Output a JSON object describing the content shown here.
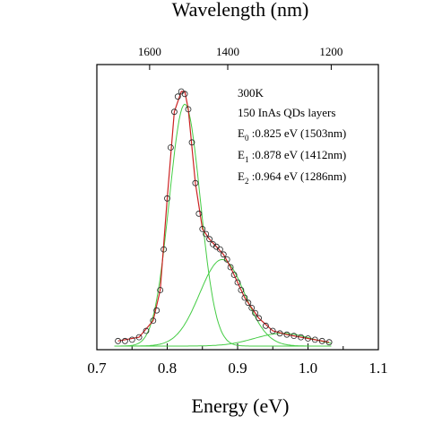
{
  "chart_data": {
    "type": "line",
    "xlabel": "Energy (eV)",
    "top_xlabel": "Wavelength (nm)",
    "xlim": [
      0.7,
      1.1
    ],
    "x_ticks": [
      "0.7",
      "0.8",
      "0.9",
      "1.0",
      "1.1"
    ],
    "top_ticks": [
      "1600",
      "1400",
      "1200"
    ],
    "top_tick_energies": [
      0.775,
      0.886,
      1.033
    ],
    "ylabel": "",
    "ylim": [
      0,
      1.05
    ],
    "annotations": {
      "line1": "300K",
      "line2": "150 InAs QDs layers",
      "e0_sym": "E",
      "e0_sub": "0",
      "e0_text": " :0.825 eV (1503nm)",
      "e1_sym": "E",
      "e1_sub": "1",
      "e1_text": " :0.878 eV (1412nm)",
      "e2_sym": "E",
      "e2_sub": "2",
      "e2_text": " :0.964 eV (1286nm)"
    },
    "series": [
      {
        "color": "#222222",
        "style": "open-circle markers",
        "x": [
          0.73,
          0.74,
          0.75,
          0.76,
          0.77,
          0.78,
          0.785,
          0.79,
          0.795,
          0.8,
          0.805,
          0.81,
          0.815,
          0.82,
          0.825,
          0.83,
          0.835,
          0.84,
          0.845,
          0.85,
          0.855,
          0.86,
          0.865,
          0.87,
          0.875,
          0.88,
          0.885,
          0.89,
          0.895,
          0.9,
          0.905,
          0.91,
          0.915,
          0.92,
          0.925,
          0.93,
          0.94,
          0.95,
          0.96,
          0.97,
          0.98,
          0.99,
          1.0,
          1.01,
          1.02,
          1.03
        ],
        "values": [
          0.02,
          0.02,
          0.025,
          0.035,
          0.06,
          0.1,
          0.14,
          0.22,
          0.38,
          0.58,
          0.78,
          0.92,
          0.98,
          1.0,
          0.99,
          0.93,
          0.8,
          0.64,
          0.52,
          0.46,
          0.44,
          0.42,
          0.4,
          0.39,
          0.38,
          0.36,
          0.34,
          0.31,
          0.28,
          0.25,
          0.22,
          0.19,
          0.17,
          0.15,
          0.13,
          0.11,
          0.08,
          0.06,
          0.05,
          0.045,
          0.04,
          0.035,
          0.03,
          0.025,
          0.02,
          0.015
        ]
      },
      {
        "color": "#cc2222",
        "style": "fit line",
        "x": [
          0.73,
          0.76,
          0.78,
          0.79,
          0.8,
          0.81,
          0.82,
          0.825,
          0.83,
          0.84,
          0.85,
          0.86,
          0.87,
          0.88,
          0.89,
          0.9,
          0.91,
          0.92,
          0.93,
          0.95,
          0.97,
          1.0,
          1.03
        ],
        "values": [
          0.02,
          0.035,
          0.1,
          0.22,
          0.58,
          0.92,
          1.0,
          1.0,
          0.93,
          0.64,
          0.46,
          0.42,
          0.39,
          0.36,
          0.31,
          0.25,
          0.19,
          0.15,
          0.11,
          0.06,
          0.045,
          0.03,
          0.015
        ]
      },
      {
        "color": "#44cc44",
        "style": "fit component E0",
        "center": 0.825,
        "amplitude": 0.95,
        "width": 0.022
      },
      {
        "color": "#44cc44",
        "style": "fit component E1",
        "center": 0.878,
        "amplitude": 0.34,
        "width": 0.032
      },
      {
        "color": "#44cc44",
        "style": "fit component E2",
        "center": 0.964,
        "amplitude": 0.05,
        "width": 0.04
      }
    ]
  }
}
